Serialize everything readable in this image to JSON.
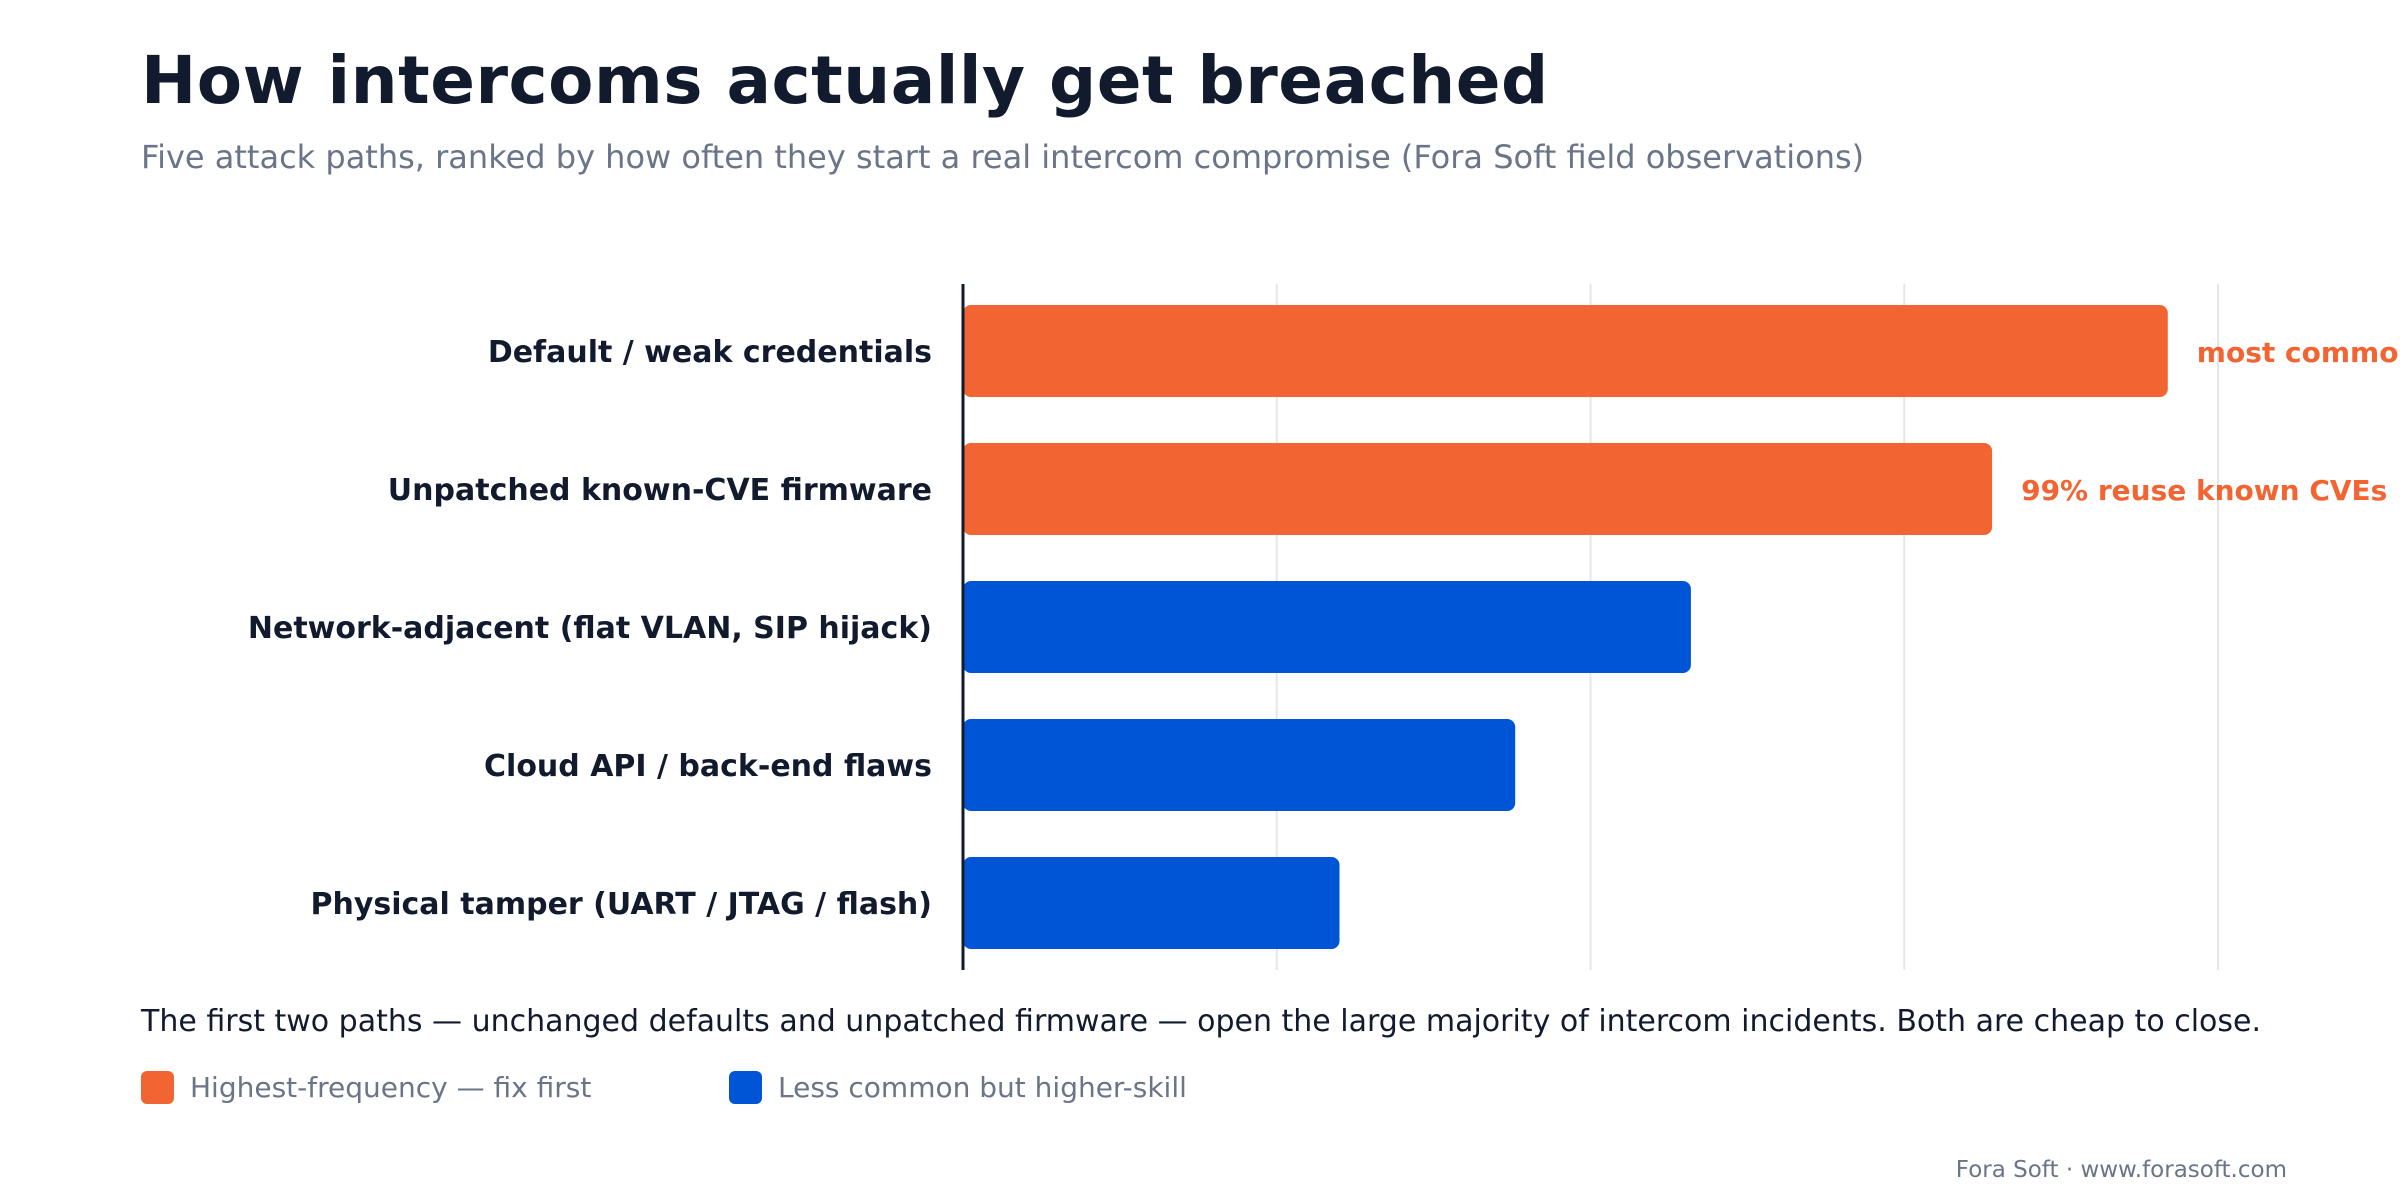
{
  "header": {
    "title": "How intercoms actually get breached",
    "subtitle": "Five attack paths, ranked by how often they start a real intercom compromise (Fora Soft field observations)"
  },
  "colors": {
    "primary": "#f26532",
    "secondary": "#0054d6",
    "text_dark": "#121a2d",
    "text_muted": "#6a7587",
    "grid": "#e3e6ec"
  },
  "chart_data": {
    "type": "bar",
    "orientation": "horizontal",
    "categories": [
      "Default / weak credentials",
      "Unpatched known-CVE firmware",
      "Network-adjacent (flat VLAN, SIP hijack)",
      "Cloud API / back-end flaws",
      "Physical tamper (UART / JTAG / flash)"
    ],
    "values": [
      96,
      82,
      58,
      44,
      30
    ],
    "groups": [
      "primary",
      "primary",
      "secondary",
      "secondary",
      "secondary"
    ],
    "annotations": [
      "most common",
      "99% reuse known CVEs",
      "",
      "",
      ""
    ],
    "xlim": [
      0,
      100
    ],
    "grid": true,
    "tick_labels_shown": false
  },
  "takeaway": "The first two paths — unchanged defaults and unpatched firmware — open the large majority of intercom incidents. Both are cheap to close.",
  "legend": [
    {
      "label": "Highest-frequency — fix first",
      "color_key": "primary"
    },
    {
      "label": "Less common but higher-skill",
      "color_key": "secondary"
    }
  ],
  "footer": "Fora Soft · www.forasoft.com"
}
